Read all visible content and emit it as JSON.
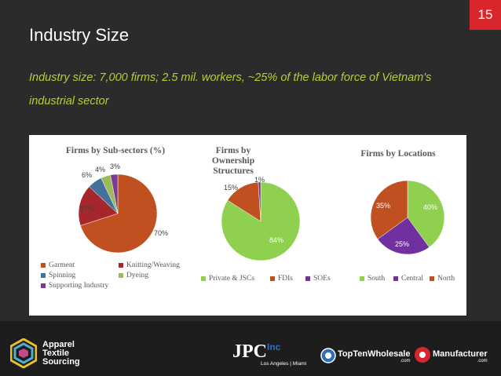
{
  "slide_number": "15",
  "title": "Industry Size",
  "subtitle": "Industry size: 7,000 firms; 2.5 mil. workers, ~25% of the labor force of Vietnam's industrial sector",
  "chart_data": [
    {
      "type": "pie",
      "title": "Firms by Sub-sectors (%)",
      "categories": [
        "Garment",
        "Knitting/Weaving",
        "Spinning",
        "Dyeing",
        "Supporting Industry"
      ],
      "values": [
        70,
        17,
        6,
        4,
        3
      ],
      "labels": [
        "70%",
        "17%",
        "6%",
        "4%",
        "3%"
      ],
      "colors": [
        "#c0501f",
        "#a7262c",
        "#44709e",
        "#9bbb59",
        "#7c3a96"
      ]
    },
    {
      "type": "pie",
      "title": "Firms by Ownership Structures",
      "categories": [
        "Private & JSCs",
        "FDIs",
        "SOEs"
      ],
      "values": [
        84,
        15,
        1
      ],
      "labels": [
        "84%",
        "15%",
        "1%"
      ],
      "colors": [
        "#8fd14f",
        "#c0501f",
        "#7030a0"
      ]
    },
    {
      "type": "pie",
      "title": "Firms by Locations",
      "categories": [
        "South",
        "Central",
        "North"
      ],
      "values": [
        40,
        25,
        35
      ],
      "labels": [
        "40%",
        "25%",
        "35%"
      ],
      "colors": [
        "#8fd14f",
        "#7030a0",
        "#c0501f"
      ]
    }
  ],
  "footer": {
    "brand_line1": "Apparel",
    "brand_line2": "Textile",
    "brand_line3": "Sourcing",
    "jpc": "JPC",
    "jpc_sup": "Inc",
    "jpc_sub": "Los Angeles | Miami",
    "ttw": "TopTenWholesale",
    "ttw_sub": ".com",
    "mfr": "Manufacturer",
    "mfr_sub": ".com"
  }
}
